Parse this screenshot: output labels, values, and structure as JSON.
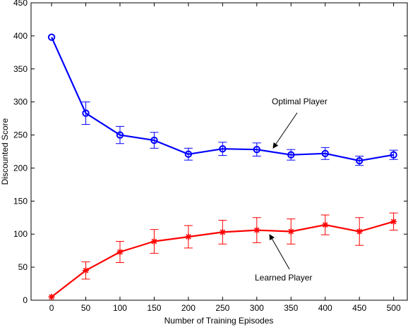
{
  "chart_data": {
    "type": "line",
    "title": "",
    "xlabel": "Number of Training Episodes",
    "ylabel": "Discounted Score",
    "x": [
      0,
      50,
      100,
      150,
      200,
      250,
      300,
      350,
      400,
      450,
      500
    ],
    "xlim": [
      -30,
      520
    ],
    "ylim": [
      0,
      450
    ],
    "xticks": [
      0,
      50,
      100,
      150,
      200,
      250,
      300,
      350,
      400,
      450,
      500
    ],
    "yticks": [
      0,
      50,
      100,
      150,
      200,
      250,
      300,
      350,
      400,
      450
    ],
    "grid": false,
    "series": [
      {
        "name": "Optimal Player",
        "color": "#0000ff",
        "marker": "circle",
        "values": [
          398,
          283,
          250,
          242,
          221,
          229,
          228,
          220,
          222,
          211,
          220
        ],
        "error": [
          0,
          17,
          13,
          12,
          9,
          10,
          10,
          8,
          9,
          7,
          7
        ]
      },
      {
        "name": "Learned Player",
        "color": "#ff0000",
        "marker": "star",
        "values": [
          5,
          45,
          73,
          89,
          96,
          103,
          106,
          104,
          114,
          104,
          119
        ],
        "error": [
          0,
          13,
          16,
          18,
          17,
          18,
          19,
          19,
          15,
          21,
          13
        ]
      }
    ],
    "annotations": [
      {
        "text": "Optimal Player",
        "series": 0
      },
      {
        "text": "Learned Player",
        "series": 1
      }
    ]
  }
}
